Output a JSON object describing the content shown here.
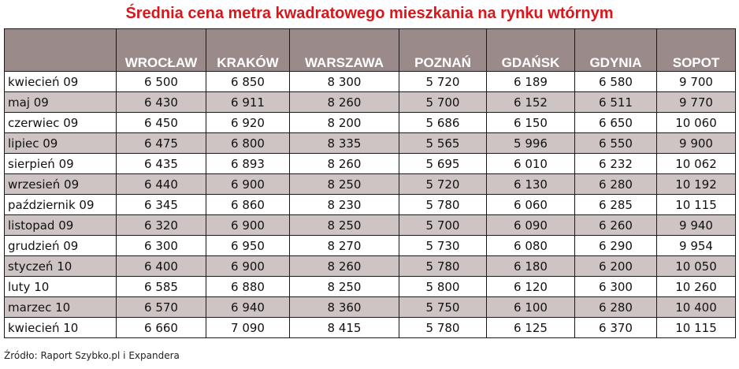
{
  "title": "Średnia cena metra kwadratowego mieszkania na rynku wtórnym",
  "source": "Źródło: Raport Szybko.pl i Expandera",
  "chart_data": {
    "type": "table",
    "title": "Średnia cena metra kwadratowego mieszkania na rynku wtórnym",
    "columns": [
      "",
      "WROCŁAW",
      "KRAKÓW",
      "WARSZAWA",
      "POZNAŃ",
      "GDAŃSK",
      "GDYNIA",
      "SOPOT"
    ],
    "rows": [
      [
        "kwiecień 09",
        "6 500",
        "6 850",
        "8 300",
        "5 720",
        "6 189",
        "6 580",
        "9 700"
      ],
      [
        "maj 09",
        "6 430",
        "6 911",
        "8 260",
        "5 700",
        "6 152",
        "6 511",
        "9 770"
      ],
      [
        "czerwiec 09",
        "6 450",
        "6 920",
        "8 200",
        "5 686",
        "6 150",
        "6 650",
        "10 060"
      ],
      [
        "lipiec 09",
        "6 475",
        "6 800",
        "8 335",
        "5 565",
        "5 996",
        "6 550",
        "9 900"
      ],
      [
        "sierpień 09",
        "6 435",
        "6 893",
        "8 260",
        "5 695",
        "6 010",
        "6 232",
        "10 062"
      ],
      [
        "wrzesień 09",
        "6 440",
        "6 900",
        "8 250",
        "5 720",
        "6 130",
        "6 280",
        "10 192"
      ],
      [
        "październik 09",
        "6 345",
        "6 860",
        "8 230",
        "5 780",
        "6 060",
        "6 285",
        "10 115"
      ],
      [
        "listopad 09",
        "6 320",
        "6 900",
        "8 250",
        "5 700",
        "6 090",
        "6 260",
        "9 940"
      ],
      [
        "grudzień 09",
        "6 300",
        "6 950",
        "8 270",
        "5 730",
        "6 080",
        "6 290",
        "9 954"
      ],
      [
        "styczeń 10",
        "6 400",
        "6 900",
        "8 260",
        "5 780",
        "6 180",
        "6 200",
        "10 050"
      ],
      [
        "luty 10",
        "6 585",
        "6 880",
        "8 250",
        "5 800",
        "6 120",
        "6 300",
        "10 260"
      ],
      [
        "marzec 10",
        "6 570",
        "6 940",
        "8 360",
        "5 750",
        "6 100",
        "6 280",
        "10 400"
      ],
      [
        "kwiecień 10",
        "6 660",
        "7 090",
        "8 415",
        "5 780",
        "6 125",
        "6 370",
        "10 115"
      ]
    ]
  },
  "colors": {
    "title": "#d9161c",
    "header_bg": "#9b8a8a",
    "header_text": "#ffffff",
    "row_alt": "#cfc4c4",
    "row_plain": "#ffffff",
    "border": "#1a1a1a"
  }
}
